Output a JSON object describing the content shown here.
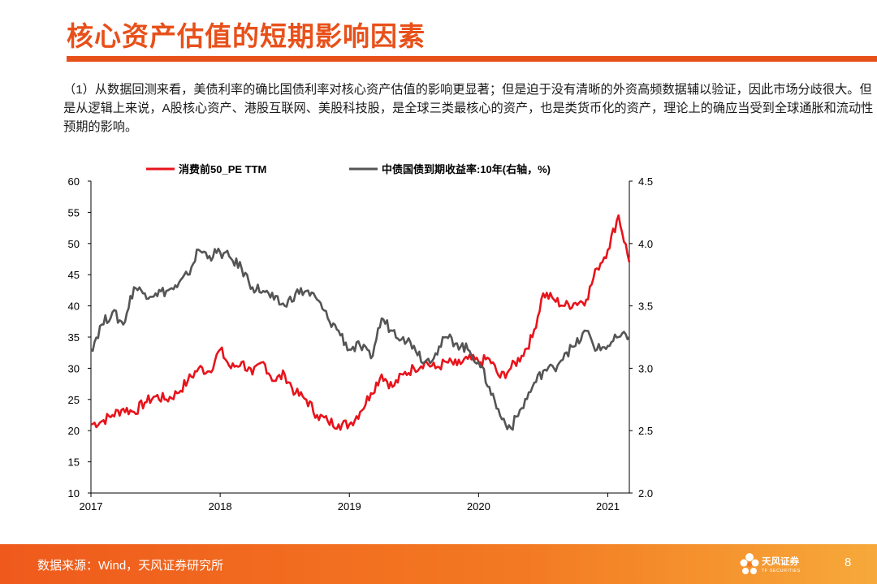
{
  "slide": {
    "title": "核心资产估值的短期影响因素",
    "intro": "（1）从数据回测来看，美债利率的确比国债利率对核心资产估值的影响更显著；但是迫于没有清晰的外资高频数据辅以验证，因此市场分歧很大。但是从逻辑上来说，A股核心资产、港股互联网、美股科技股，是全球三类最核心的资产，也是类货币化的资产，理论上的确应当受到全球通胀和流动性预期的影响。"
  },
  "colors": {
    "accent": "#e8501a",
    "series_pe": "#e8131b",
    "series_yield": "#555555"
  },
  "chart_data": {
    "type": "line",
    "legend_position": "top",
    "grid": false,
    "x_ticks": [
      "2017",
      "2018",
      "2019",
      "2020",
      "2021"
    ],
    "x_range": [
      "2017-01",
      "2021-03"
    ],
    "y_left": {
      "range": [
        10,
        60
      ],
      "ticks": [
        10,
        15,
        20,
        25,
        30,
        35,
        40,
        45,
        50,
        55,
        60
      ]
    },
    "y_right": {
      "range": [
        2.0,
        4.5
      ],
      "ticks": [
        "2.0",
        "2.5",
        "3.0",
        "3.5",
        "4.0",
        "4.5"
      ]
    },
    "series": [
      {
        "name": "消费前50_PE TTM",
        "axis": "left",
        "points": [
          [
            "2017-01",
            21.0
          ],
          [
            "2017-02",
            21.5
          ],
          [
            "2017-03",
            22.5
          ],
          [
            "2017-04",
            23.5
          ],
          [
            "2017-05",
            23.0
          ],
          [
            "2017-06",
            24.5
          ],
          [
            "2017-07",
            25.5
          ],
          [
            "2017-08",
            25.0
          ],
          [
            "2017-09",
            26.0
          ],
          [
            "2017-10",
            28.0
          ],
          [
            "2017-11",
            30.0
          ],
          [
            "2017-12",
            29.5
          ],
          [
            "2018-01",
            33.0
          ],
          [
            "2018-02",
            30.0
          ],
          [
            "2018-03",
            31.0
          ],
          [
            "2018-04",
            29.0
          ],
          [
            "2018-05",
            31.0
          ],
          [
            "2018-06",
            28.0
          ],
          [
            "2018-07",
            29.0
          ],
          [
            "2018-08",
            26.0
          ],
          [
            "2018-09",
            25.0
          ],
          [
            "2018-10",
            22.5
          ],
          [
            "2018-11",
            21.5
          ],
          [
            "2018-12",
            21.0
          ],
          [
            "2019-01",
            21.0
          ],
          [
            "2019-02",
            23.0
          ],
          [
            "2019-03",
            26.0
          ],
          [
            "2019-04",
            29.0
          ],
          [
            "2019-05",
            27.0
          ],
          [
            "2019-06",
            29.0
          ],
          [
            "2019-07",
            30.0
          ],
          [
            "2019-08",
            31.0
          ],
          [
            "2019-09",
            30.0
          ],
          [
            "2019-10",
            31.0
          ],
          [
            "2019-11",
            30.5
          ],
          [
            "2019-12",
            31.5
          ],
          [
            "2020-01",
            31.0
          ],
          [
            "2020-02",
            31.5
          ],
          [
            "2020-03",
            28.5
          ],
          [
            "2020-04",
            30.0
          ],
          [
            "2020-05",
            32.0
          ],
          [
            "2020-06",
            35.0
          ],
          [
            "2020-07",
            42.0
          ],
          [
            "2020-08",
            41.0
          ],
          [
            "2020-09",
            40.0
          ],
          [
            "2020-10",
            40.5
          ],
          [
            "2020-11",
            41.0
          ],
          [
            "2020-12",
            46.0
          ],
          [
            "2021-01",
            49.0
          ],
          [
            "2021-02",
            54.5
          ],
          [
            "2021-03",
            47.0
          ]
        ]
      },
      {
        "name": "中债国债到期收益率:10年(右轴，%)",
        "axis": "right",
        "points": [
          [
            "2017-01",
            3.15
          ],
          [
            "2017-02",
            3.35
          ],
          [
            "2017-03",
            3.45
          ],
          [
            "2017-04",
            3.35
          ],
          [
            "2017-05",
            3.65
          ],
          [
            "2017-06",
            3.6
          ],
          [
            "2017-07",
            3.6
          ],
          [
            "2017-08",
            3.62
          ],
          [
            "2017-09",
            3.65
          ],
          [
            "2017-10",
            3.75
          ],
          [
            "2017-11",
            3.95
          ],
          [
            "2017-12",
            3.9
          ],
          [
            "2018-01",
            3.93
          ],
          [
            "2018-02",
            3.88
          ],
          [
            "2018-03",
            3.8
          ],
          [
            "2018-04",
            3.65
          ],
          [
            "2018-05",
            3.62
          ],
          [
            "2018-06",
            3.55
          ],
          [
            "2018-07",
            3.5
          ],
          [
            "2018-08",
            3.6
          ],
          [
            "2018-09",
            3.62
          ],
          [
            "2018-10",
            3.55
          ],
          [
            "2018-11",
            3.4
          ],
          [
            "2018-12",
            3.3
          ],
          [
            "2019-01",
            3.15
          ],
          [
            "2019-02",
            3.18
          ],
          [
            "2019-03",
            3.08
          ],
          [
            "2019-04",
            3.4
          ],
          [
            "2019-05",
            3.3
          ],
          [
            "2019-06",
            3.25
          ],
          [
            "2019-07",
            3.18
          ],
          [
            "2019-08",
            3.05
          ],
          [
            "2019-09",
            3.12
          ],
          [
            "2019-10",
            3.25
          ],
          [
            "2019-11",
            3.2
          ],
          [
            "2019-12",
            3.15
          ],
          [
            "2020-01",
            3.05
          ],
          [
            "2020-02",
            2.85
          ],
          [
            "2020-03",
            2.62
          ],
          [
            "2020-04",
            2.52
          ],
          [
            "2020-05",
            2.68
          ],
          [
            "2020-06",
            2.85
          ],
          [
            "2020-07",
            2.98
          ],
          [
            "2020-08",
            3.0
          ],
          [
            "2020-09",
            3.12
          ],
          [
            "2020-10",
            3.18
          ],
          [
            "2020-11",
            3.3
          ],
          [
            "2020-12",
            3.15
          ],
          [
            "2021-01",
            3.18
          ],
          [
            "2021-02",
            3.25
          ],
          [
            "2021-03",
            3.25
          ]
        ]
      }
    ]
  },
  "footer": {
    "source": "数据来源：Wind，天风证券研究所",
    "logo_cn": "天风证券",
    "logo_en": "TF SECURITIES",
    "page": "8"
  }
}
